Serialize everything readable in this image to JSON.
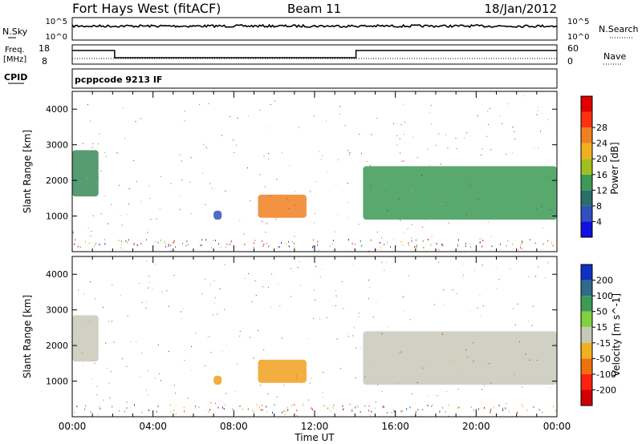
{
  "header": {
    "station": "Fort Hays West (fitACF)",
    "beam": "Beam 11",
    "date": "18/Jan/2012"
  },
  "summary_panels": {
    "nsky_label": "N.Sky",
    "nsearch_label": "N.Search",
    "noise_ticks": [
      "10^5",
      "10^0"
    ],
    "freq_label": "Freq.",
    "freq_unit": "[MHz]",
    "freq_ticks": [
      "18",
      "8"
    ],
    "nave_label": "Nave",
    "nave_ticks": [
      "60",
      "0"
    ],
    "cpid_label": "CPID",
    "cpid_value": "pcppcode 9213 IF",
    "freq_steps": [
      {
        "start_hour": 0.0,
        "end_hour": 2.1,
        "level": "high"
      },
      {
        "start_hour": 2.1,
        "end_hour": 14.05,
        "level": "low"
      },
      {
        "start_hour": 14.05,
        "end_hour": 24.0,
        "level": "high"
      }
    ]
  },
  "chart_data": [
    {
      "type": "heatmap",
      "name": "power-panel",
      "ylabel": "Slant Range [km]",
      "xlim_hours": [
        0,
        24
      ],
      "ylim": [
        0,
        4500
      ],
      "yticks": [
        1000,
        2000,
        3000,
        4000
      ],
      "colorbar": {
        "label": "Power [dB]",
        "ticks": [
          "4",
          "8",
          "12",
          "16",
          "20",
          "24",
          "28"
        ],
        "colors": [
          "#1010e0",
          "#3050c0",
          "#2a6e6a",
          "#3c9a55",
          "#a0c020",
          "#f0b020",
          "#f08020",
          "#ff3010",
          "#e00000"
        ]
      },
      "regions": [
        {
          "x0": 0.0,
          "x1": 1.3,
          "y0": 1550,
          "y1": 2850,
          "color": "#3a8a5a"
        },
        {
          "x0": 7.0,
          "x1": 7.4,
          "y0": 900,
          "y1": 1150,
          "color": "#3050c0"
        },
        {
          "x0": 9.2,
          "x1": 11.6,
          "y0": 950,
          "y1": 1600,
          "color": "#f08020"
        },
        {
          "x0": 14.4,
          "x1": 24.0,
          "y0": 900,
          "y1": 2400,
          "color": "#3c9a55"
        }
      ]
    },
    {
      "type": "heatmap",
      "name": "velocity-panel",
      "ylabel": "Slant Range [km]",
      "xlabel": "Time UT",
      "xticks": [
        "00:00",
        "04:00",
        "08:00",
        "12:00",
        "16:00",
        "20:00",
        "00:00"
      ],
      "xlim_hours": [
        0,
        24
      ],
      "ylim": [
        0,
        4500
      ],
      "yticks": [
        1000,
        2000,
        3000,
        4000
      ],
      "colorbar": {
        "label": "Velocity [m s^-1]",
        "ticks": [
          "200",
          "100",
          "50",
          "15",
          "-15",
          "-50",
          "-100",
          "-200"
        ],
        "colors": [
          "#1030c0",
          "#306a8a",
          "#3c9a55",
          "#80d040",
          "#c8c8b8",
          "#f0b020",
          "#f07010",
          "#ff2010",
          "#d00000"
        ]
      },
      "regions": [
        {
          "x0": 0.0,
          "x1": 1.3,
          "y0": 1550,
          "y1": 2850,
          "color": "#c8c8b8"
        },
        {
          "x0": 7.0,
          "x1": 7.4,
          "y0": 900,
          "y1": 1150,
          "color": "#f0a020"
        },
        {
          "x0": 9.2,
          "x1": 11.6,
          "y0": 950,
          "y1": 1600,
          "color": "#f0a020"
        },
        {
          "x0": 14.4,
          "x1": 24.0,
          "y0": 900,
          "y1": 2400,
          "color": "#c8c8b8"
        }
      ]
    }
  ]
}
